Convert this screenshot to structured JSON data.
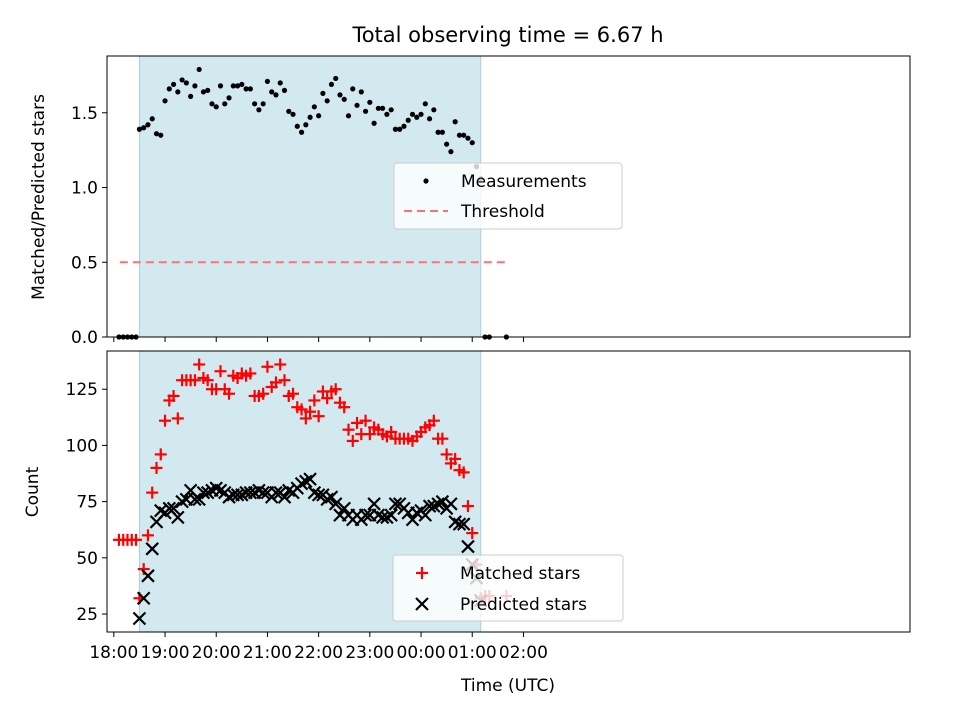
{
  "figure_title": "Total observing time = 6.67 h",
  "colors": {
    "band": "#d3e9f0",
    "band_edge": "#a9cfdd",
    "threshold": "#ff7070",
    "matched": "#ff0000",
    "predicted": "#000000",
    "measurements": "#000000"
  },
  "chart_data": [
    {
      "type": "scatter",
      "panel": "top",
      "title": "Total observing time = 6.67 h",
      "xlabel": "",
      "ylabel": "Matched/Predicted stars",
      "ylim": [
        0,
        1.88
      ],
      "yticks": [
        0.0,
        0.5,
        1.0,
        1.5
      ],
      "ytick_labels": [
        "0.0",
        "0.5",
        "1.0",
        "1.5"
      ],
      "shaded_interval": [
        "18:30",
        "01:10"
      ],
      "legend": {
        "position": "center",
        "entries": [
          "Measurements",
          "Threshold"
        ]
      },
      "series": [
        {
          "name": "Measurements",
          "marker": "dot",
          "x": [
            "18:06",
            "18:11",
            "18:16",
            "18:21",
            "18:26",
            "18:30",
            "18:35",
            "18:40",
            "18:45",
            "18:50",
            "18:55",
            "19:00",
            "19:05",
            "19:10",
            "19:15",
            "19:20",
            "19:25",
            "19:30",
            "19:35",
            "19:40",
            "19:45",
            "19:50",
            "19:55",
            "20:00",
            "20:05",
            "20:10",
            "20:15",
            "20:20",
            "20:25",
            "20:30",
            "20:35",
            "20:40",
            "20:45",
            "20:50",
            "20:55",
            "21:00",
            "21:05",
            "21:10",
            "21:15",
            "21:20",
            "21:25",
            "21:30",
            "21:35",
            "21:40",
            "21:45",
            "21:50",
            "21:55",
            "22:00",
            "22:05",
            "22:10",
            "22:15",
            "22:20",
            "22:25",
            "22:30",
            "22:35",
            "22:40",
            "22:45",
            "22:50",
            "22:55",
            "23:00",
            "23:05",
            "23:10",
            "23:15",
            "23:20",
            "23:25",
            "23:30",
            "23:35",
            "23:40",
            "23:45",
            "23:50",
            "23:55",
            "00:00",
            "00:05",
            "00:10",
            "00:15",
            "00:20",
            "00:25",
            "00:30",
            "00:35",
            "00:40",
            "00:45",
            "00:50",
            "00:55",
            "01:00",
            "01:05",
            "01:10",
            "01:15",
            "01:20",
            "01:40"
          ],
          "y": [
            0.0,
            0.0,
            0.0,
            0.0,
            0.0,
            1.39,
            1.4,
            1.42,
            1.46,
            1.36,
            1.35,
            1.58,
            1.66,
            1.69,
            1.64,
            1.72,
            1.7,
            1.61,
            1.68,
            1.79,
            1.64,
            1.65,
            1.56,
            1.54,
            1.68,
            1.56,
            1.6,
            1.68,
            1.68,
            1.69,
            1.66,
            1.66,
            1.56,
            1.52,
            1.56,
            1.71,
            1.64,
            1.62,
            1.7,
            1.65,
            1.51,
            1.49,
            1.41,
            1.37,
            1.42,
            1.47,
            1.54,
            1.48,
            1.63,
            1.58,
            1.69,
            1.73,
            1.62,
            1.59,
            1.48,
            1.66,
            1.55,
            1.64,
            1.51,
            1.57,
            1.43,
            1.53,
            1.53,
            1.49,
            1.52,
            1.39,
            1.39,
            1.41,
            1.45,
            1.49,
            1.47,
            1.49,
            1.56,
            1.46,
            1.52,
            1.37,
            1.37,
            1.29,
            1.24,
            1.44,
            1.35,
            1.35,
            1.33,
            1.3,
            1.14,
            1.06,
            0.0,
            0.0,
            0.0
          ]
        },
        {
          "name": "Threshold",
          "type": "line",
          "style": "dashed",
          "x": [
            "18:07",
            "01:40"
          ],
          "y": [
            0.5,
            0.5
          ]
        }
      ]
    },
    {
      "type": "scatter",
      "panel": "bottom",
      "xlabel": "Time (UTC)",
      "ylabel": "Count",
      "ylim": [
        17,
        142
      ],
      "yticks": [
        25,
        50,
        75,
        100,
        125
      ],
      "ytick_labels": [
        "25",
        "50",
        "75",
        "100",
        "125"
      ],
      "xticks": [
        "18:00",
        "19:00",
        "20:00",
        "21:00",
        "22:00",
        "23:00",
        "00:00",
        "01:00",
        "02:00"
      ],
      "shaded_interval": [
        "18:30",
        "01:10"
      ],
      "legend": {
        "position": "lower center",
        "entries": [
          "Matched stars",
          "Predicted stars"
        ]
      },
      "series": [
        {
          "name": "Matched stars",
          "marker": "plus",
          "x": [
            "18:06",
            "18:11",
            "18:16",
            "18:21",
            "18:26",
            "18:30",
            "18:35",
            "18:40",
            "18:45",
            "18:50",
            "18:55",
            "19:00",
            "19:05",
            "19:10",
            "19:15",
            "19:20",
            "19:25",
            "19:30",
            "19:35",
            "19:40",
            "19:45",
            "19:50",
            "19:55",
            "20:00",
            "20:05",
            "20:10",
            "20:15",
            "20:20",
            "20:25",
            "20:30",
            "20:35",
            "20:40",
            "20:45",
            "20:50",
            "20:55",
            "21:00",
            "21:05",
            "21:10",
            "21:15",
            "21:20",
            "21:25",
            "21:30",
            "21:35",
            "21:40",
            "21:45",
            "21:50",
            "21:55",
            "22:00",
            "22:05",
            "22:10",
            "22:15",
            "22:20",
            "22:25",
            "22:30",
            "22:35",
            "22:40",
            "22:45",
            "22:50",
            "22:55",
            "23:00",
            "23:05",
            "23:10",
            "23:15",
            "23:20",
            "23:25",
            "23:30",
            "23:35",
            "23:40",
            "23:45",
            "23:50",
            "23:55",
            "00:00",
            "00:05",
            "00:10",
            "00:15",
            "00:20",
            "00:25",
            "00:30",
            "00:35",
            "00:40",
            "00:45",
            "00:50",
            "00:55",
            "01:00",
            "01:05",
            "01:10",
            "01:15",
            "01:20",
            "01:40"
          ],
          "y": [
            58,
            58,
            58,
            58,
            58,
            32,
            45,
            60,
            79,
            90,
            96,
            111,
            120,
            122,
            112,
            129,
            129,
            129,
            129,
            136,
            130,
            129,
            125,
            125,
            133,
            125,
            123,
            131,
            130,
            132,
            131,
            132,
            122,
            122,
            123,
            135,
            126,
            128,
            136,
            129,
            122,
            123,
            117,
            116,
            112,
            115,
            120,
            113,
            124,
            121,
            124,
            125,
            119,
            117,
            107,
            102,
            110,
            105,
            111,
            105,
            108,
            107,
            105,
            104,
            106,
            103,
            103,
            103,
            103,
            102,
            104,
            106,
            108,
            109,
            111,
            103,
            103,
            96,
            92,
            94,
            89,
            88,
            73,
            61,
            47,
            32,
            33,
            33,
            33
          ]
        },
        {
          "name": "Predicted stars",
          "marker": "x",
          "x": [
            "18:30",
            "18:35",
            "18:40",
            "18:45",
            "18:50",
            "18:55",
            "19:00",
            "19:05",
            "19:10",
            "19:15",
            "19:20",
            "19:25",
            "19:30",
            "19:35",
            "19:40",
            "19:45",
            "19:50",
            "19:55",
            "20:00",
            "20:05",
            "20:10",
            "20:15",
            "20:20",
            "20:25",
            "20:30",
            "20:35",
            "20:40",
            "20:45",
            "20:50",
            "20:55",
            "21:00",
            "21:05",
            "21:10",
            "21:15",
            "21:20",
            "21:25",
            "21:30",
            "21:35",
            "21:40",
            "21:45",
            "21:50",
            "21:55",
            "22:00",
            "22:05",
            "22:10",
            "22:15",
            "22:20",
            "22:25",
            "22:30",
            "22:35",
            "22:40",
            "22:45",
            "22:50",
            "22:55",
            "23:00",
            "23:05",
            "23:10",
            "23:15",
            "23:20",
            "23:25",
            "23:30",
            "23:35",
            "23:40",
            "23:45",
            "23:50",
            "23:55",
            "00:00",
            "00:05",
            "00:10",
            "00:15",
            "00:20",
            "00:25",
            "00:30",
            "00:35",
            "00:40",
            "00:45",
            "00:50",
            "00:55",
            "01:00",
            "01:05",
            "01:10"
          ],
          "y": [
            23,
            32,
            42,
            54,
            66,
            71,
            70,
            72,
            72,
            68,
            75,
            76,
            80,
            76,
            76,
            79,
            79,
            80,
            81,
            80,
            79,
            77,
            78,
            78,
            78,
            79,
            79,
            79,
            80,
            79,
            79,
            77,
            79,
            79,
            77,
            80,
            79,
            81,
            83,
            84,
            85,
            79,
            78,
            78,
            76,
            77,
            74,
            69,
            72,
            69,
            67,
            69,
            67,
            69,
            69,
            74,
            69,
            68,
            68,
            69,
            74,
            74,
            72,
            70,
            67,
            70,
            71,
            69,
            73,
            73,
            74,
            75,
            72,
            74,
            66,
            65,
            65,
            55,
            47,
            41,
            31
          ]
        }
      ]
    }
  ]
}
